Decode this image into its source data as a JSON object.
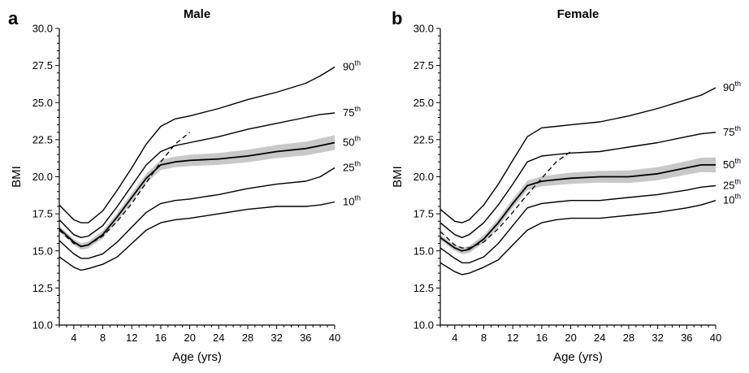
{
  "chart_data": [
    {
      "type": "line",
      "panel": "a",
      "title": "Male",
      "xlabel": "Age (yrs)",
      "ylabel": "BMI",
      "xlim": [
        2,
        40
      ],
      "ylim": [
        10,
        30
      ],
      "x_ticks": [
        "4",
        "8",
        "12",
        "16",
        "20",
        "24",
        "28",
        "32",
        "36",
        "40"
      ],
      "y_ticks": [
        "10.0",
        "12.5",
        "15.0",
        "17.5",
        "20.0",
        "22.5",
        "25.0",
        "27.5",
        "30.0"
      ],
      "series": [
        {
          "name": "90",
          "x": [
            2,
            4,
            5,
            6,
            8,
            10,
            12,
            14,
            16,
            18,
            20,
            24,
            28,
            32,
            36,
            38,
            40
          ],
          "y": [
            18.1,
            17.1,
            16.9,
            16.9,
            17.7,
            19.1,
            20.6,
            22.2,
            23.4,
            23.9,
            24.1,
            24.6,
            25.2,
            25.7,
            26.3,
            26.8,
            27.4
          ]
        },
        {
          "name": "75",
          "x": [
            2,
            4,
            5,
            6,
            8,
            10,
            12,
            14,
            16,
            18,
            20,
            24,
            28,
            32,
            36,
            38,
            40
          ],
          "y": [
            17.1,
            16.1,
            15.9,
            16.0,
            16.7,
            18.0,
            19.4,
            20.8,
            21.7,
            22.1,
            22.3,
            22.7,
            23.2,
            23.6,
            24.0,
            24.2,
            24.3
          ]
        },
        {
          "name": "50",
          "x": [
            2,
            4,
            5,
            6,
            8,
            10,
            12,
            14,
            16,
            18,
            20,
            24,
            28,
            32,
            36,
            38,
            40
          ],
          "y": [
            16.5,
            15.6,
            15.3,
            15.4,
            16.1,
            17.3,
            18.6,
            19.9,
            20.8,
            21.0,
            21.1,
            21.2,
            21.4,
            21.7,
            21.9,
            22.1,
            22.3
          ]
        },
        {
          "name": "25",
          "x": [
            2,
            4,
            5,
            6,
            8,
            10,
            12,
            14,
            16,
            18,
            20,
            24,
            28,
            32,
            36,
            38,
            40
          ],
          "y": [
            15.7,
            14.8,
            14.5,
            14.5,
            14.8,
            15.6,
            16.6,
            17.6,
            18.2,
            18.4,
            18.5,
            18.8,
            19.2,
            19.5,
            19.7,
            20.0,
            20.6
          ]
        },
        {
          "name": "10",
          "x": [
            2,
            4,
            5,
            6,
            8,
            10,
            12,
            14,
            16,
            18,
            20,
            24,
            28,
            32,
            36,
            38,
            40
          ],
          "y": [
            14.6,
            13.9,
            13.7,
            13.8,
            14.1,
            14.6,
            15.5,
            16.4,
            16.9,
            17.1,
            17.2,
            17.5,
            17.8,
            18.0,
            18.0,
            18.1,
            18.3
          ]
        }
      ],
      "reference_dashed": {
        "x": [
          2,
          4,
          5,
          6,
          8,
          10,
          12,
          14,
          16,
          18,
          20
        ],
        "y": [
          16.4,
          15.5,
          15.3,
          15.4,
          16.0,
          17.0,
          18.2,
          19.6,
          21.0,
          22.2,
          23.0
        ]
      }
    },
    {
      "type": "line",
      "panel": "b",
      "title": "Female",
      "xlabel": "Age (yrs)",
      "ylabel": "BMI",
      "xlim": [
        2,
        40
      ],
      "ylim": [
        10,
        30
      ],
      "x_ticks": [
        "4",
        "8",
        "12",
        "16",
        "20",
        "24",
        "28",
        "32",
        "36",
        "40"
      ],
      "y_ticks": [
        "10.0",
        "12.5",
        "15.0",
        "17.5",
        "20.0",
        "22.5",
        "25.0",
        "27.5",
        "30.0"
      ],
      "series": [
        {
          "name": "90",
          "x": [
            2,
            4,
            5,
            6,
            8,
            10,
            12,
            14,
            16,
            18,
            20,
            24,
            28,
            32,
            36,
            38,
            40
          ],
          "y": [
            17.8,
            17.0,
            16.9,
            17.1,
            18.1,
            19.5,
            21.1,
            22.7,
            23.3,
            23.4,
            23.5,
            23.7,
            24.1,
            24.6,
            25.2,
            25.5,
            26.0
          ]
        },
        {
          "name": "75",
          "x": [
            2,
            4,
            5,
            6,
            8,
            10,
            12,
            14,
            16,
            18,
            20,
            24,
            28,
            32,
            36,
            38,
            40
          ],
          "y": [
            16.9,
            16.1,
            15.9,
            16.1,
            16.9,
            18.1,
            19.5,
            21.0,
            21.4,
            21.5,
            21.6,
            21.7,
            22.0,
            22.3,
            22.7,
            22.9,
            23.0
          ]
        },
        {
          "name": "50",
          "x": [
            2,
            4,
            5,
            6,
            8,
            10,
            12,
            14,
            16,
            18,
            20,
            24,
            28,
            32,
            36,
            38,
            40
          ],
          "y": [
            15.9,
            15.2,
            15.0,
            15.1,
            15.8,
            16.9,
            18.2,
            19.4,
            19.7,
            19.8,
            19.9,
            20.0,
            20.0,
            20.2,
            20.6,
            20.8,
            20.8
          ]
        },
        {
          "name": "25",
          "x": [
            2,
            4,
            5,
            6,
            8,
            10,
            12,
            14,
            16,
            18,
            20,
            24,
            28,
            32,
            36,
            38,
            40
          ],
          "y": [
            15.2,
            14.5,
            14.2,
            14.2,
            14.6,
            15.5,
            16.7,
            17.9,
            18.2,
            18.3,
            18.4,
            18.4,
            18.6,
            18.8,
            19.1,
            19.3,
            19.4
          ]
        },
        {
          "name": "10",
          "x": [
            2,
            4,
            5,
            6,
            8,
            10,
            12,
            14,
            16,
            18,
            20,
            24,
            28,
            32,
            36,
            38,
            40
          ],
          "y": [
            14.2,
            13.6,
            13.4,
            13.5,
            13.9,
            14.4,
            15.4,
            16.4,
            16.9,
            17.1,
            17.2,
            17.2,
            17.4,
            17.6,
            17.9,
            18.1,
            18.4
          ]
        }
      ],
      "reference_dashed": {
        "x": [
          2,
          4,
          5,
          6,
          8,
          10,
          12,
          14,
          16,
          18,
          20
        ],
        "y": [
          16.3,
          15.4,
          15.2,
          15.2,
          15.6,
          16.5,
          17.6,
          18.8,
          19.9,
          21.0,
          21.7
        ]
      }
    }
  ],
  "percentile_sup": "th",
  "colors": {
    "curve": "#000000",
    "band": "#c8c8c8",
    "background": "#ffffff"
  }
}
